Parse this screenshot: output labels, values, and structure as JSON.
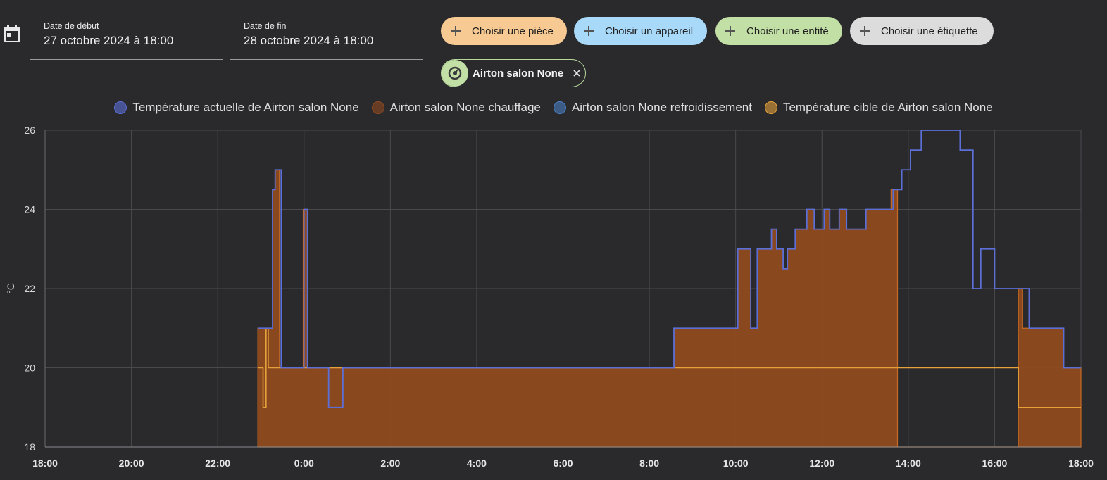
{
  "start_date": {
    "label": "Date de début",
    "value": "27 octobre 2024 à 18:00"
  },
  "end_date": {
    "label": "Date de fin",
    "value": "28 octobre 2024 à 18:00"
  },
  "chips": {
    "area": "Choisir une pièce",
    "device": "Choisir un appareil",
    "entity": "Choisir une entité",
    "label": "Choisir une étiquette"
  },
  "selected_entity": {
    "name": "Airton salon None",
    "icon": "thermostat-icon"
  },
  "colors": {
    "current": "#5b6fd6",
    "heating": "#8f4a1f",
    "heating_line": "#c66a22",
    "cooling": "#4a7fc1",
    "target": "#e5a23a",
    "chip_area": "#f7c993",
    "chip_device": "#a9d9f9",
    "chip_entity": "#c2e0a6",
    "chip_label": "#dcdcdc"
  },
  "chart_data": {
    "type": "line",
    "ylabel": "°C",
    "ylim": [
      18,
      26
    ],
    "yticks": [
      "18",
      "20",
      "22",
      "24",
      "26"
    ],
    "xlim_hours": [
      0,
      24
    ],
    "xticks": [
      "18:00",
      "20:00",
      "22:00",
      "0:00",
      "2:00",
      "4:00",
      "6:00",
      "8:00",
      "10:00",
      "12:00",
      "14:00",
      "16:00",
      "18:00"
    ],
    "grid": true,
    "legend_position": "top",
    "series": [
      {
        "name": "Température actuelle de Airton salon None",
        "color_key": "current",
        "style": "step-line",
        "points": [
          [
            4.93,
            21
          ],
          [
            5.27,
            24.5
          ],
          [
            5.33,
            25
          ],
          [
            5.47,
            20
          ],
          [
            6.0,
            24
          ],
          [
            6.08,
            20
          ],
          [
            6.57,
            19
          ],
          [
            6.9,
            20
          ],
          [
            14.57,
            21
          ],
          [
            16.05,
            23
          ],
          [
            16.35,
            21
          ],
          [
            16.5,
            23
          ],
          [
            16.83,
            23.5
          ],
          [
            16.95,
            23
          ],
          [
            17.1,
            22.5
          ],
          [
            17.2,
            23
          ],
          [
            17.38,
            23.5
          ],
          [
            17.65,
            24
          ],
          [
            17.82,
            23.5
          ],
          [
            18.05,
            24
          ],
          [
            18.18,
            23.5
          ],
          [
            18.4,
            24
          ],
          [
            18.57,
            23.5
          ],
          [
            19.02,
            24
          ],
          [
            19.65,
            24.5
          ],
          [
            19.85,
            25
          ],
          [
            20.05,
            25.5
          ],
          [
            20.3,
            26
          ],
          [
            21.2,
            25.5
          ],
          [
            21.5,
            22
          ],
          [
            21.68,
            23
          ],
          [
            22.0,
            22
          ],
          [
            22.6,
            22
          ],
          [
            22.8,
            21
          ],
          [
            23.6,
            20
          ],
          [
            24,
            20
          ]
        ]
      },
      {
        "name": "Airton salon None chauffage",
        "color_key": "heating",
        "style": "step-area",
        "points": [
          [
            4.93,
            21
          ],
          [
            5.27,
            24.5
          ],
          [
            5.33,
            25
          ],
          [
            5.43,
            20
          ],
          [
            5.98,
            24
          ],
          [
            6.08,
            20
          ],
          [
            14.57,
            21
          ],
          [
            16.05,
            23
          ],
          [
            16.35,
            21
          ],
          [
            16.5,
            23
          ],
          [
            16.83,
            23.5
          ],
          [
            16.95,
            23
          ],
          [
            17.1,
            22.5
          ],
          [
            17.2,
            23
          ],
          [
            17.38,
            23.5
          ],
          [
            17.65,
            24
          ],
          [
            17.82,
            23.5
          ],
          [
            18.05,
            24
          ],
          [
            18.18,
            23.5
          ],
          [
            18.4,
            24
          ],
          [
            18.57,
            23.5
          ],
          [
            19.02,
            24
          ],
          [
            19.6,
            24.5
          ],
          [
            19.75,
            18
          ],
          [
            22.55,
            22
          ],
          [
            22.65,
            21
          ],
          [
            23.6,
            20
          ],
          [
            24,
            20
          ]
        ]
      },
      {
        "name": "Airton salon None refroidissement",
        "color_key": "cooling",
        "style": "step-line",
        "points": []
      },
      {
        "name": "Température cible de Airton salon None",
        "color_key": "target",
        "style": "step-line",
        "points": [
          [
            4.93,
            20
          ],
          [
            5.05,
            19
          ],
          [
            5.12,
            21
          ],
          [
            5.17,
            20
          ],
          [
            5.33,
            20
          ],
          [
            22.55,
            19
          ],
          [
            24,
            19
          ]
        ]
      }
    ]
  }
}
